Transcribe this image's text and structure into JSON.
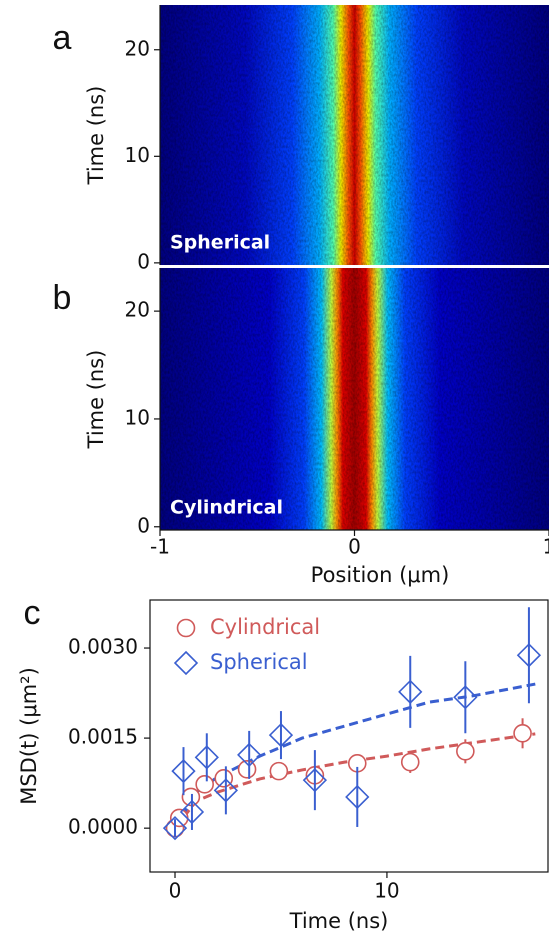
{
  "chart_data": [
    {
      "type": "heatmap",
      "panel_label": "a",
      "annotation": "Spherical",
      "ylabel": "Time (ns)",
      "ylim": [
        -0.2,
        24.2
      ],
      "yticks": [
        0,
        10,
        20
      ]
    },
    {
      "type": "heatmap",
      "panel_label": "b",
      "annotation": "Cylindrical",
      "ylabel": "Time (ns)",
      "xlabel": "Position (μm)",
      "xlim": [
        -1,
        1
      ],
      "xticks": [
        -1,
        0,
        1
      ],
      "ylim": [
        -0.3,
        24
      ],
      "yticks": [
        0,
        10,
        20
      ]
    },
    {
      "type": "scatter",
      "panel_label": "c",
      "xlabel": "Time (ns)",
      "ylabel": "MSD(t) (μm²)",
      "xlim": [
        -1.18,
        17.6
      ],
      "ylim": [
        -0.00073,
        0.0038
      ],
      "xticks": [
        0,
        10
      ],
      "yticks": [
        {
          "value": 0,
          "label": "0.0000"
        },
        {
          "value": 0.0015,
          "label": "0.0015"
        },
        {
          "value": 0.003,
          "label": "0.0030"
        }
      ],
      "legend": "upper left",
      "series": [
        {
          "name": "Cylindrical",
          "color": "#d05a5a",
          "marker": "circle",
          "x": [
            0,
            0.2,
            0.75,
            1.4,
            2.3,
            3.4,
            4.9,
            6.6,
            8.6,
            11.1,
            13.7,
            16.4
          ],
          "values": [
            0,
            0.00017,
            0.00052,
            0.00073,
            0.00083,
            0.00098,
            0.00095,
            0.00088,
            0.00108,
            0.0011,
            0.00128,
            0.00158
          ],
          "errors": [
            5e-05,
            0.0001,
            0.0001,
            0.0001,
            0.0001,
            0.0001,
            0.00012,
            0.00015,
            0.00015,
            0.00018,
            0.0002,
            0.00025
          ]
        },
        {
          "name": "Spherical",
          "color": "#3a5fd0",
          "marker": "diamond",
          "x": [
            0,
            0.4,
            0.8,
            1.5,
            2.4,
            3.5,
            5.0,
            6.6,
            8.6,
            11.1,
            13.7,
            16.7
          ],
          "values": [
            0,
            0.00095,
            0.00027,
            0.00118,
            0.00063,
            0.00122,
            0.00155,
            0.0008,
            0.00052,
            0.00227,
            0.00218,
            0.00288
          ],
          "errors": [
            0.00015,
            0.0004,
            0.0003,
            0.0004,
            0.0004,
            0.0004,
            0.0004,
            0.0005,
            0.0005,
            0.0006,
            0.0006,
            0.0008
          ]
        }
      ],
      "fits": [
        {
          "color": "#d05a5a",
          "x": [
            0,
            1,
            2,
            4,
            6,
            8,
            10,
            12,
            14,
            17
          ],
          "values": [
            0,
            0.00045,
            0.0006,
            0.00082,
            0.00097,
            0.0011,
            0.0012,
            0.00132,
            0.00142,
            0.00157
          ]
        },
        {
          "color": "#3a5fd0",
          "x": [
            0,
            1,
            2,
            4,
            6,
            8,
            10,
            12,
            14,
            17
          ],
          "values": [
            0,
            0.0006,
            0.00085,
            0.0012,
            0.0015,
            0.0017,
            0.0019,
            0.0021,
            0.0022,
            0.0024
          ]
        }
      ]
    }
  ]
}
